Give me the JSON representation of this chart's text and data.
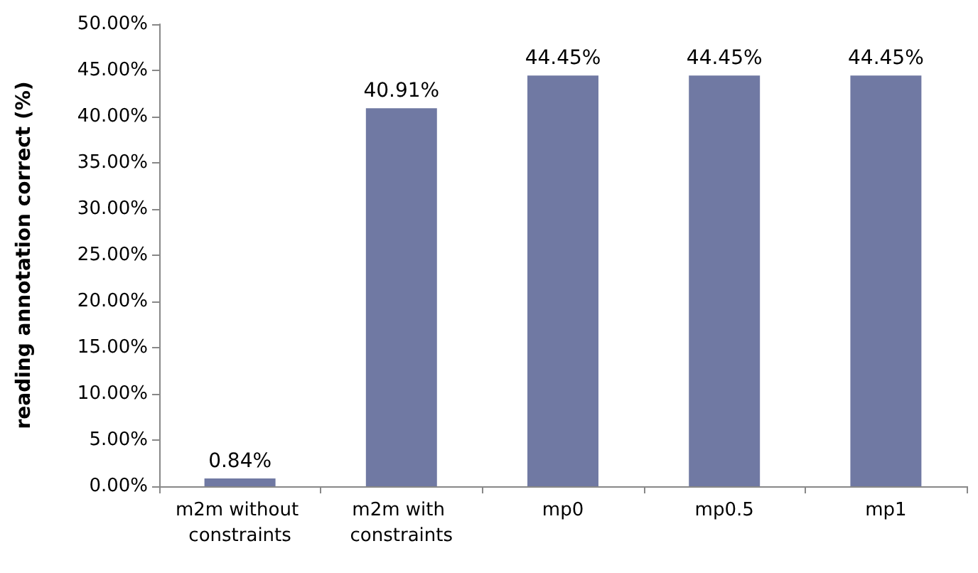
{
  "chart_data": {
    "type": "bar",
    "ylabel": "reading annotation correct (%)",
    "categories": [
      "m2m without constraints",
      "m2m with constraints",
      "mp0",
      "mp0.5",
      "mp1"
    ],
    "values": [
      0.84,
      40.91,
      44.45,
      44.45,
      44.45
    ],
    "value_labels": [
      "0.84%",
      "40.91%",
      "44.45%",
      "44.45%",
      "44.45%"
    ],
    "color": "#7079a3",
    "ylim": [
      0,
      50
    ],
    "yticks": [
      {
        "value": 0,
        "label": "0.00%"
      },
      {
        "value": 5,
        "label": "5.00%"
      },
      {
        "value": 10,
        "label": "10.00%"
      },
      {
        "value": 15,
        "label": "15.00%"
      },
      {
        "value": 20,
        "label": "20.00%"
      },
      {
        "value": 25,
        "label": "25.00%"
      },
      {
        "value": 30,
        "label": "30.00%"
      },
      {
        "value": 35,
        "label": "35.00%"
      },
      {
        "value": 40,
        "label": "40.00%"
      },
      {
        "value": 45,
        "label": "45.00%"
      },
      {
        "value": 50,
        "label": "50.00%"
      }
    ],
    "grid": false
  }
}
